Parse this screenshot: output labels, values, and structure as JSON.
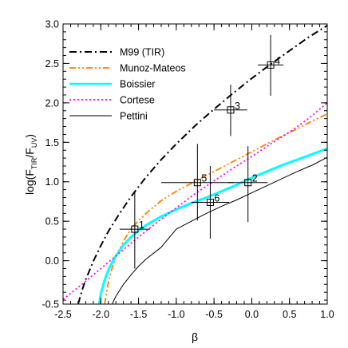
{
  "chart_data": {
    "type": "line",
    "title": "",
    "xlabel": "β",
    "ylabel": {
      "prefix": "log(F",
      "sub1": "TIR",
      "mid": "/F",
      "sub2": "UV",
      "suffix": ")"
    },
    "xlim": [
      -2.5,
      1.0
    ],
    "ylim": [
      -0.55,
      3.0
    ],
    "xticks": [
      -2.5,
      -2.0,
      -1.5,
      -1.0,
      -0.5,
      0.0,
      0.5,
      1.0
    ],
    "xtick_labels": [
      "-2.5",
      "-2.0",
      "-1.5",
      "-1.0",
      "-0.5",
      "0.0",
      "0.5",
      "1.0"
    ],
    "yticks": [
      0.0,
      0.5,
      1.0,
      1.5,
      2.0,
      2.5,
      3.0
    ],
    "ytick_labels": [
      "0.0",
      "0.5",
      "1.0",
      "1.5",
      "2.0",
      "2.5",
      "3.0"
    ],
    "grid": false,
    "legend_position": "top-left",
    "series": [
      {
        "name": "M99 (TIR)",
        "color": "#000000",
        "style": "dashdot",
        "width": 2.0,
        "x": [
          -2.3,
          -2.25,
          -2.2,
          -2.1,
          -2.0,
          -1.9,
          -1.75,
          -1.6,
          -1.4,
          -1.2,
          -1.0,
          -0.75,
          -0.5,
          -0.25,
          0.0,
          0.25,
          0.5,
          0.75,
          1.0
        ],
        "y": [
          -0.55,
          -0.38,
          -0.24,
          -0.01,
          0.19,
          0.37,
          0.6,
          0.81,
          1.06,
          1.28,
          1.48,
          1.71,
          1.92,
          2.12,
          2.31,
          2.49,
          2.66,
          2.83,
          2.98
        ]
      },
      {
        "name": "Munoz-Mateos",
        "color": "#ff7f00",
        "style": "dashdotdot",
        "width": 1.8,
        "x": [
          -1.95,
          -1.9,
          -1.85,
          -1.8,
          -1.7,
          -1.6,
          -1.5,
          -1.4,
          -1.2,
          -1.0,
          -0.8,
          -0.6,
          -0.4,
          -0.2,
          0.0,
          0.2,
          0.4,
          0.6,
          0.8,
          1.0
        ],
        "y": [
          -0.55,
          -0.28,
          -0.09,
          0.05,
          0.25,
          0.4,
          0.51,
          0.6,
          0.76,
          0.88,
          0.98,
          1.08,
          1.18,
          1.28,
          1.38,
          1.48,
          1.58,
          1.67,
          1.77,
          1.86
        ]
      },
      {
        "name": "Boissier",
        "color": "#00ffff",
        "style": "solid",
        "width": 3.0,
        "x": [
          -2.02,
          -2.0,
          -1.95,
          -1.9,
          -1.85,
          -1.8,
          -1.7,
          -1.6,
          -1.5,
          -1.4,
          -1.2,
          -1.0,
          -0.8,
          -0.6,
          -0.4,
          -0.2,
          0.0,
          0.2,
          0.4,
          0.6,
          0.8,
          1.0
        ],
        "y": [
          -0.55,
          -0.42,
          -0.25,
          -0.12,
          -0.02,
          0.06,
          0.2,
          0.3,
          0.38,
          0.45,
          0.56,
          0.65,
          0.73,
          0.8,
          0.88,
          0.96,
          1.05,
          1.13,
          1.21,
          1.28,
          1.35,
          1.42
        ]
      },
      {
        "name": "Cortese",
        "color": "#ff00ff",
        "style": "dotted",
        "width": 1.8,
        "x": [
          -2.5,
          -2.25,
          -2.0,
          -1.75,
          -1.5,
          -1.25,
          -1.0,
          -0.75,
          -0.5,
          -0.25,
          0.0,
          0.25,
          0.5,
          0.75,
          1.0
        ],
        "y": [
          -0.49,
          -0.3,
          -0.1,
          0.1,
          0.3,
          0.49,
          0.67,
          0.85,
          1.01,
          1.17,
          1.32,
          1.48,
          1.63,
          1.8,
          2.0
        ]
      },
      {
        "name": "Pettini",
        "color": "#000000",
        "style": "solid",
        "width": 1.0,
        "x": [
          -1.85,
          -1.8,
          -1.7,
          -1.6,
          -1.5,
          -1.4,
          -1.2,
          -1.0,
          -0.8,
          -0.6,
          -0.4,
          -0.2,
          0.0,
          0.2,
          0.4,
          0.6,
          0.8,
          1.0
        ],
        "y": [
          -0.55,
          -0.45,
          -0.3,
          -0.18,
          -0.07,
          0.02,
          0.17,
          0.4,
          0.5,
          0.6,
          0.69,
          0.77,
          0.86,
          0.95,
          1.04,
          1.13,
          1.21,
          1.31
        ]
      }
    ],
    "points": [
      {
        "label": "1",
        "x": -1.55,
        "y": 0.4,
        "xerr": 0.2,
        "yerr_low": 0.5,
        "yerr_high": 0.48
      },
      {
        "label": "2",
        "x": -0.05,
        "y": 0.99,
        "xerr": 0.26,
        "yerr_low": 0.5,
        "yerr_high": 0.46
      },
      {
        "label": "3",
        "x": -0.28,
        "y": 1.91,
        "xerr": 0.22,
        "yerr_low": 0.33,
        "yerr_high": 0.32
      },
      {
        "label": "4",
        "x": 0.25,
        "y": 2.48,
        "xerr": 0.17,
        "yerr_low": 0.39,
        "yerr_high": 0.38
      },
      {
        "label": "5",
        "x": -0.72,
        "y": 0.99,
        "xerr": 0.48,
        "yerr_low": 0.48,
        "yerr_high": 0.49
      },
      {
        "label": "6",
        "x": -0.55,
        "y": 0.74,
        "xerr": 0.25,
        "yerr_low": 0.46,
        "yerr_high": 0.46
      }
    ]
  }
}
